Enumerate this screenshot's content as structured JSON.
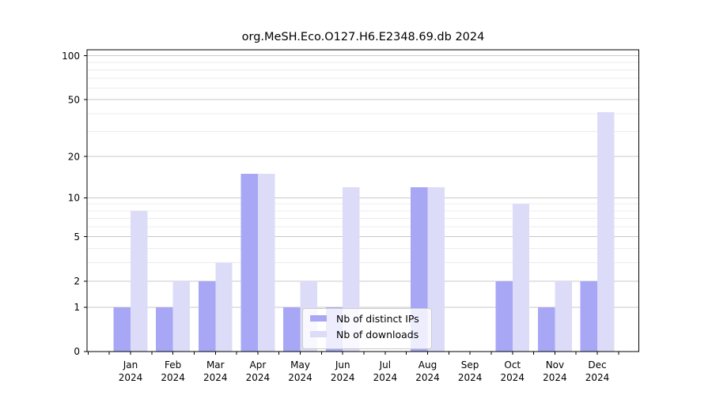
{
  "chart_data": {
    "type": "bar",
    "title": "org.MeSH.Eco.O127.H6.E2348.69.db 2024",
    "categories": [
      "Jan",
      "Feb",
      "Mar",
      "Apr",
      "May",
      "Jun",
      "Jul",
      "Aug",
      "Sep",
      "Oct",
      "Nov",
      "Dec"
    ],
    "year_label": "2024",
    "series": [
      {
        "name": "Nb of distinct IPs",
        "color": "#a7a7f6",
        "values": [
          1,
          1,
          2,
          15,
          1,
          1,
          0,
          12,
          0,
          2,
          1,
          2
        ]
      },
      {
        "name": "Nb of downloads",
        "color": "#dcdcf8",
        "values": [
          8,
          2,
          3,
          15,
          2,
          12,
          0,
          12,
          0,
          9,
          2,
          41
        ]
      }
    ],
    "y_scale": "log10(1+x)",
    "y_ticks": [
      0,
      1,
      2,
      5,
      10,
      20,
      50,
      100
    ],
    "y_minor_gridlines": [
      3,
      4,
      6,
      7,
      8,
      9,
      30,
      40,
      60,
      70,
      80,
      90
    ],
    "ylim": [
      0,
      110
    ],
    "xlabel": "",
    "ylabel": "",
    "grid": true,
    "legend_position": "bottom-center"
  },
  "colors": {
    "background": "#ffffff",
    "major_gridline": "#c9c9c9",
    "minor_gridline": "#ececec",
    "spine": "#000000",
    "legend_border": "#cccccc",
    "legend_fill": "rgba(255,255,255,0.8)",
    "text": "#000000"
  }
}
